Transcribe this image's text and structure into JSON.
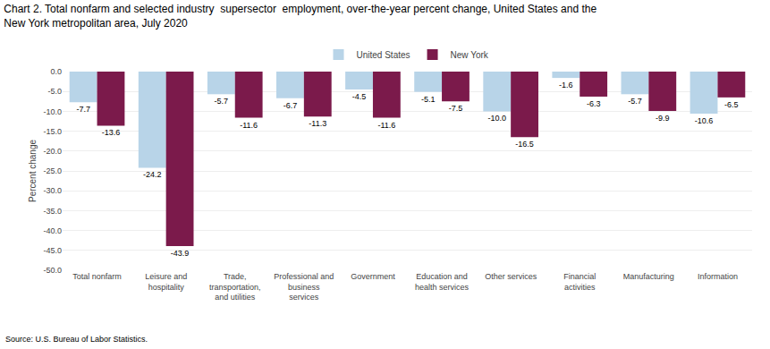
{
  "chart_data": {
    "type": "bar",
    "title": "Chart 2. Total nonfarm and selected industry  supersector  employment, over-the-year percent change, United States and the\nNew York metropolitan area, July 2020",
    "ylabel": "Percent change",
    "annotations": [
      "Source: U.S. Bureau of Labor Statistics."
    ],
    "categories": [
      "Total nonfarm",
      "Leisure and\nhospitality",
      "Trade,\ntransportation,\nand utilities",
      "Professional and\nbusiness\nservices",
      "Government",
      "Education and\nhealth services",
      "Other services",
      "Financial\nactivities",
      "Manufacturing",
      "Information"
    ],
    "series": [
      {
        "name": "United States",
        "color": "#b8d4e8",
        "values": [
          -7.7,
          -24.2,
          -5.7,
          -6.7,
          -4.5,
          -5.1,
          -10.0,
          -1.6,
          -5.7,
          -10.6
        ],
        "value_labels": [
          "-7.7",
          "-24.2",
          "-5.7",
          "-6.7",
          "-4.5",
          "-5.1",
          "-10.0",
          "-1.6",
          "-5.7",
          "-10.6"
        ]
      },
      {
        "name": "New York",
        "color": "#7b1a4b",
        "values": [
          -13.6,
          -43.9,
          -11.6,
          -11.3,
          -11.6,
          -7.5,
          -16.5,
          -6.3,
          -9.9,
          -6.5
        ],
        "value_labels": [
          "-13.6",
          "-43.9",
          "-11.6",
          "-11.3",
          "-11.6",
          "-7.5",
          "-16.5",
          "-6.3",
          "-9.9",
          "-6.5"
        ]
      }
    ],
    "ylim": [
      -50.0,
      0.0
    ],
    "yticks": [
      {
        "value": 0.0,
        "label": "0.0"
      },
      {
        "value": -5.0,
        "label": "-5.0"
      },
      {
        "value": -10.0,
        "label": "-10.0"
      },
      {
        "value": -15.0,
        "label": "-15.0"
      },
      {
        "value": -20.0,
        "label": "-20.0"
      },
      {
        "value": -25.0,
        "label": "-25.0"
      },
      {
        "value": -30.0,
        "label": "-30.0"
      },
      {
        "value": -35.0,
        "label": "-35.0"
      },
      {
        "value": -40.0,
        "label": "-40.0"
      },
      {
        "value": -45.0,
        "label": "-45.0"
      },
      {
        "value": -50.0,
        "label": "-50.0"
      }
    ],
    "grid": true,
    "legend": "upper center",
    "data_labels": true
  }
}
